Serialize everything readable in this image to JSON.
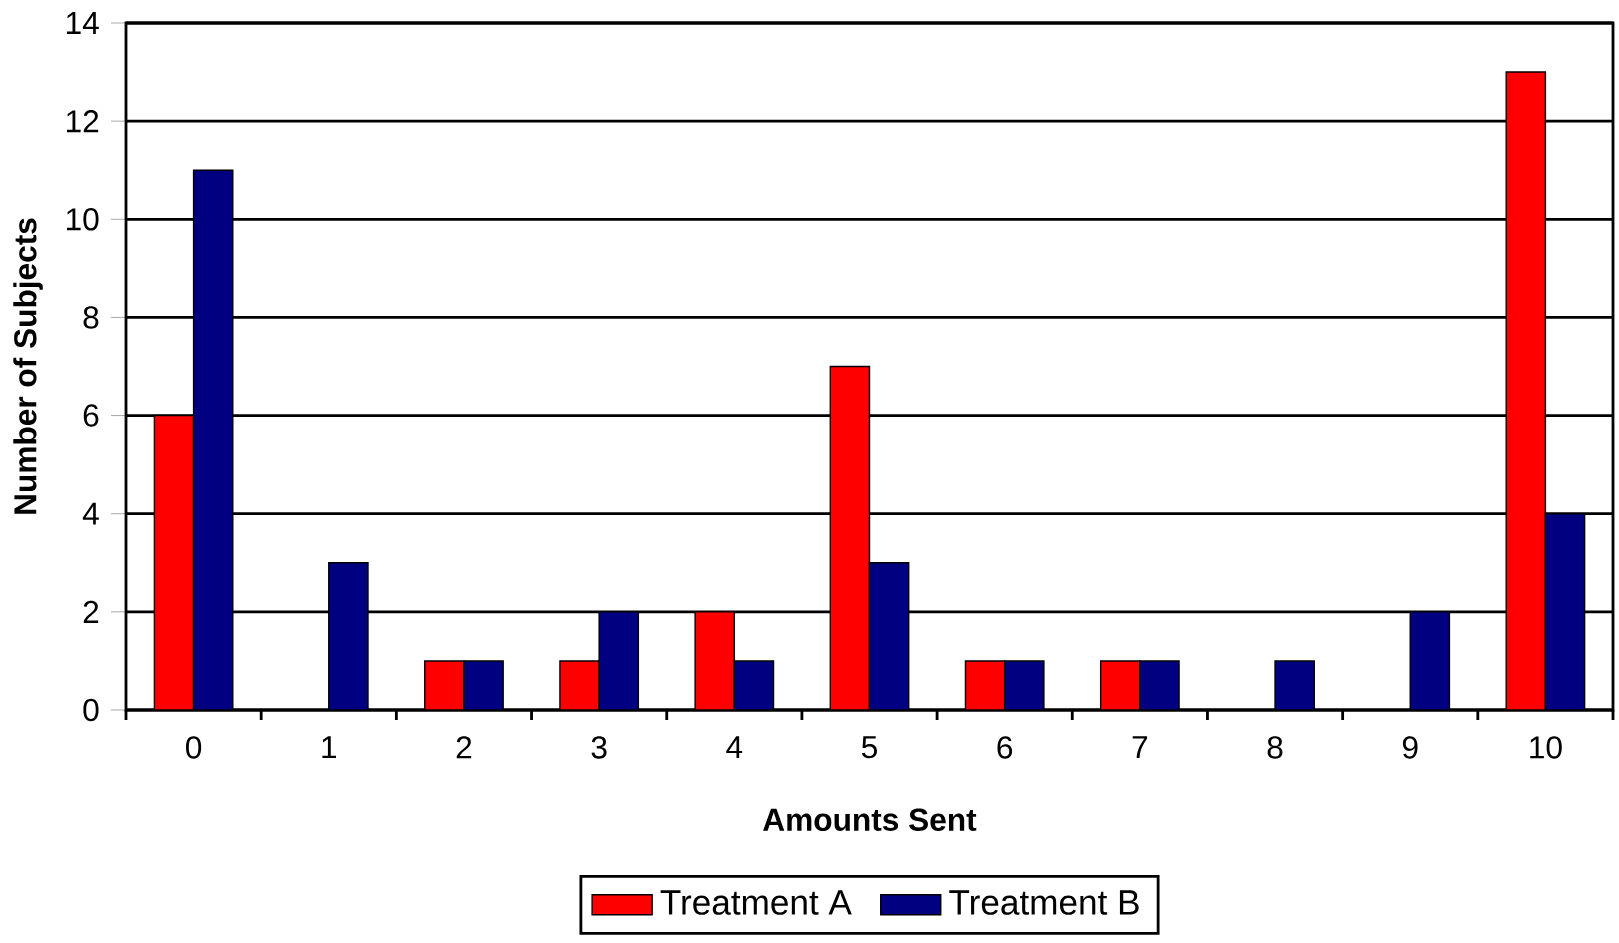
{
  "chart_data": {
    "type": "bar",
    "xlabel": "Amounts Sent",
    "ylabel": "Number of Subjects",
    "categories": [
      "0",
      "1",
      "2",
      "3",
      "4",
      "5",
      "6",
      "7",
      "8",
      "9",
      "10"
    ],
    "series": [
      {
        "name": "Treatment A",
        "color": "#ff0000",
        "values": [
          6,
          0,
          1,
          1,
          2,
          7,
          1,
          1,
          0,
          0,
          13
        ]
      },
      {
        "name": "Treatment B",
        "color": "#000080",
        "values": [
          11,
          3,
          1,
          2,
          1,
          3,
          1,
          1,
          1,
          2,
          4
        ]
      }
    ],
    "ylim": [
      0,
      14
    ],
    "yticks": [
      0,
      2,
      4,
      6,
      8,
      10,
      12,
      14
    ],
    "grid": "y",
    "legend": "bottom"
  }
}
